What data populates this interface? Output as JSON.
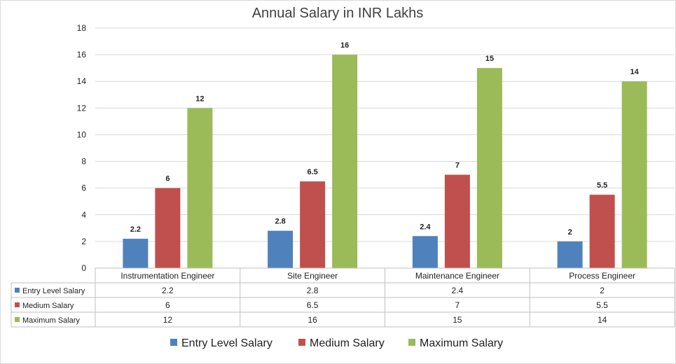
{
  "chart_data": {
    "type": "bar",
    "title": "Annual Salary in INR Lakhs",
    "categories": [
      "Instrumentation Engineer",
      "Site Engineer",
      "Maintenance Engineer",
      "Process Engineer"
    ],
    "series": [
      {
        "name": "Entry Level Salary",
        "values": [
          2.2,
          2.8,
          2.4,
          2
        ],
        "color": "#4f81bd"
      },
      {
        "name": "Medium Salary",
        "values": [
          6,
          6.5,
          7,
          5.5
        ],
        "color": "#c0504d"
      },
      {
        "name": "Maximum Salary",
        "values": [
          12,
          16,
          15,
          14
        ],
        "color": "#9bbb59"
      }
    ],
    "yticks": [
      0,
      2,
      4,
      6,
      8,
      10,
      12,
      14,
      16,
      18
    ],
    "ylim": [
      0,
      18
    ],
    "data_table": true,
    "legend": "bottom",
    "grid": true
  }
}
